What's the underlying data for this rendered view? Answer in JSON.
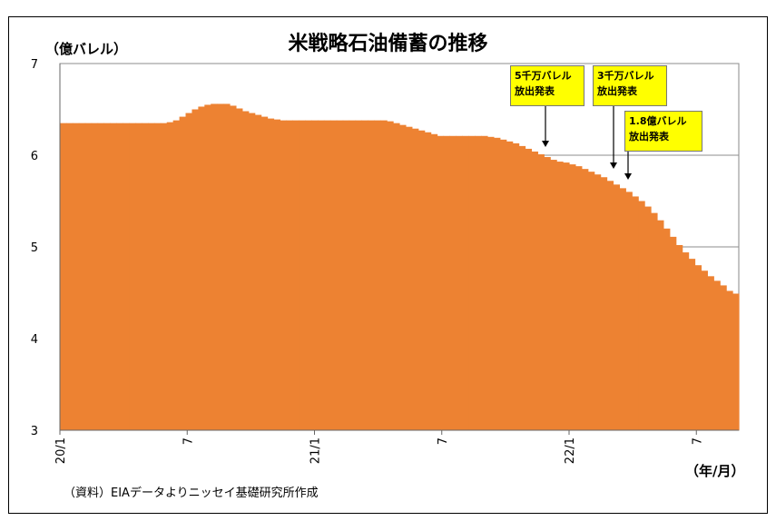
{
  "chart_data": {
    "type": "area",
    "title": "米戦略石油備蓄の推移",
    "ylabel": "（億バレル）",
    "xlabel": "（年/月）",
    "ylim": [
      3,
      7
    ],
    "yticks": [
      "3",
      "4",
      "5",
      "6",
      "7"
    ],
    "xticks": [
      {
        "label": "20/1",
        "month_index": 0
      },
      {
        "label": "7",
        "month_index": 6
      },
      {
        "label": "21/1",
        "month_index": 12
      },
      {
        "label": "7",
        "month_index": 18
      },
      {
        "label": "22/1",
        "month_index": 24
      },
      {
        "label": "7",
        "month_index": 30
      }
    ],
    "grid": "horizontal",
    "color": "#ed8232",
    "series": [
      {
        "values": [
          6.35,
          6.35,
          6.35,
          6.35,
          6.35,
          6.35,
          6.35,
          6.35,
          6.35,
          6.35,
          6.35,
          6.35,
          6.35,
          6.35,
          6.35,
          6.35,
          6.35,
          6.36,
          6.38,
          6.42,
          6.46,
          6.5,
          6.53,
          6.55,
          6.56,
          6.56,
          6.56,
          6.54,
          6.51,
          6.48,
          6.46,
          6.44,
          6.42,
          6.4,
          6.39,
          6.38,
          6.38,
          6.38,
          6.38,
          6.38,
          6.38,
          6.38,
          6.38,
          6.38,
          6.38,
          6.38,
          6.38,
          6.38,
          6.38,
          6.38,
          6.38,
          6.38,
          6.37,
          6.35,
          6.33,
          6.31,
          6.29,
          6.27,
          6.25,
          6.23,
          6.21,
          6.21,
          6.21,
          6.21,
          6.21,
          6.21,
          6.21,
          6.21,
          6.2,
          6.19,
          6.17,
          6.15,
          6.13,
          6.1,
          6.07,
          6.04,
          6.01,
          5.98,
          5.95,
          5.93,
          5.92,
          5.9,
          5.88,
          5.85,
          5.82,
          5.79,
          5.76,
          5.72,
          5.68,
          5.64,
          5.6,
          5.55,
          5.5,
          5.44,
          5.37,
          5.29,
          5.2,
          5.11,
          5.02,
          4.94,
          4.87,
          4.8,
          4.74,
          4.68,
          4.63,
          4.58,
          4.52,
          4.49
        ]
      }
    ],
    "annotations": [
      {
        "lines": [
          "5千万バレル",
          "放出発表"
        ]
      },
      {
        "lines": [
          "3千万バレル",
          "放出発表"
        ]
      },
      {
        "lines": [
          "1.8億バレル",
          "放出発表"
        ]
      }
    ]
  },
  "source_note": "（資料）EIAデータよりニッセイ基礎研究所作成"
}
